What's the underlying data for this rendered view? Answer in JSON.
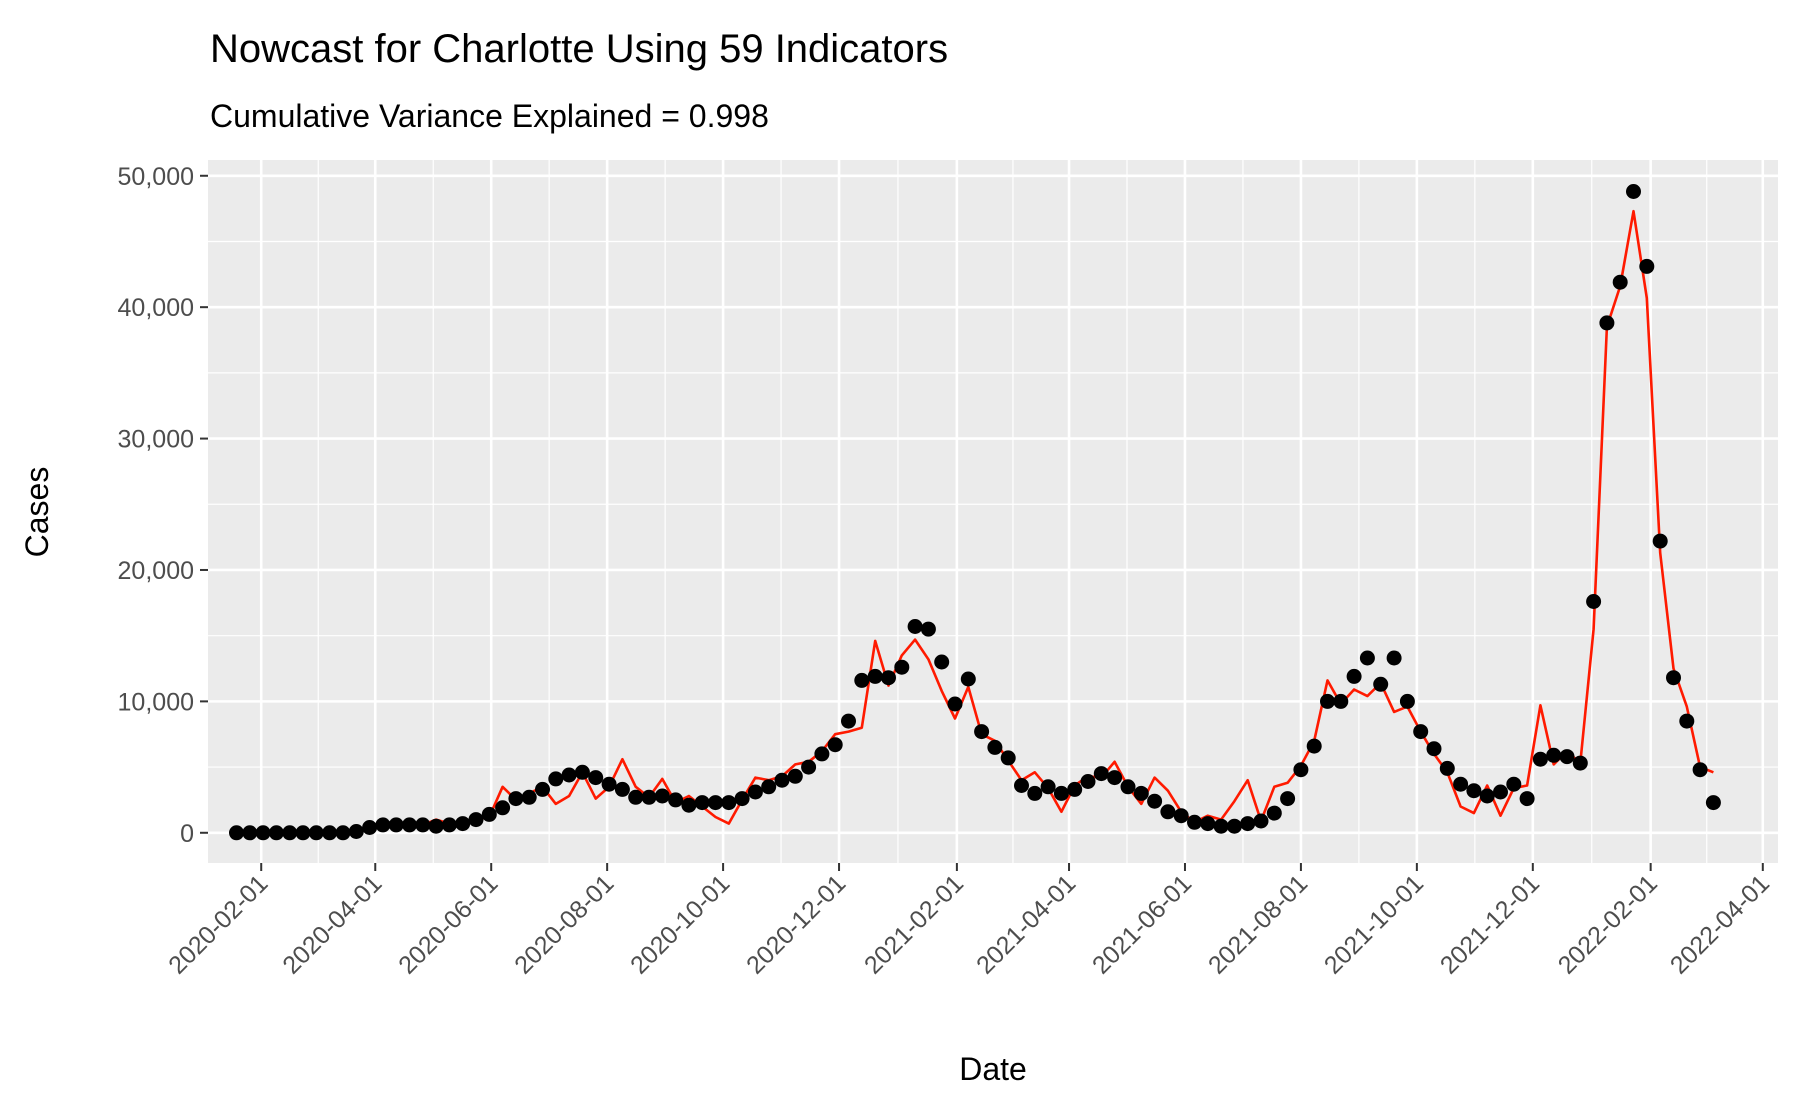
{
  "chart_data": {
    "type": "line",
    "title": "Nowcast for Charlotte Using 59 Indicators",
    "subtitle": "Cumulative Variance Explained = 0.998",
    "xlabel": "Date",
    "ylabel": "Cases",
    "x_start": "2020-01-19",
    "x_step_days": 7,
    "xlim": [
      "2020-01-04",
      "2022-04-09"
    ],
    "ylim": [
      -2300,
      51200
    ],
    "x_ticks": [
      "2020-02-01",
      "2020-04-01",
      "2020-06-01",
      "2020-08-01",
      "2020-10-01",
      "2020-12-01",
      "2021-02-01",
      "2021-04-01",
      "2021-06-01",
      "2021-08-01",
      "2021-10-01",
      "2021-12-01",
      "2022-02-01",
      "2022-04-01"
    ],
    "y_ticks": [
      0,
      10000,
      20000,
      30000,
      40000,
      50000
    ],
    "y_tick_labels": [
      "0",
      "10,000",
      "20,000",
      "30,000",
      "40,000",
      "50,000"
    ],
    "grid": true,
    "panel_background": "#ebebeb",
    "series": [
      {
        "name": "observed",
        "mark": "point",
        "color": "#000000",
        "values": [
          0,
          0,
          0,
          0,
          0,
          0,
          0,
          0,
          0,
          100,
          400,
          600,
          600,
          600,
          600,
          500,
          600,
          700,
          1000,
          1400,
          1900,
          2600,
          2700,
          3300,
          4100,
          4400,
          4600,
          4200,
          3700,
          3300,
          2700,
          2700,
          2800,
          2500,
          2100,
          2300,
          2300,
          2300,
          2600,
          3100,
          3500,
          4000,
          4300,
          5000,
          6000,
          6700,
          8500,
          11600,
          11900,
          11800,
          12600,
          15700,
          15500,
          13000,
          9800,
          11700,
          7700,
          6500,
          5700,
          3600,
          3000,
          3500,
          3000,
          3300,
          3900,
          4500,
          4200,
          3500,
          3000,
          2400,
          1600,
          1300,
          800,
          700,
          500,
          500,
          700,
          900,
          1500,
          2600,
          4800,
          6600,
          10000,
          10000,
          11900,
          13300,
          11300,
          13300,
          10000,
          7700,
          6400,
          4900,
          3700,
          3200,
          2800,
          3100,
          3700,
          2600,
          5600,
          5900,
          5800,
          5300,
          17600,
          38800,
          41900,
          48800,
          43100,
          22200,
          11800,
          8500,
          4800,
          2300
        ]
      },
      {
        "name": "nowcast",
        "mark": "line",
        "color": "#ff1a00",
        "values": [
          0,
          0,
          0,
          0,
          0,
          0,
          0,
          100,
          100,
          200,
          300,
          500,
          700,
          800,
          600,
          1000,
          700,
          900,
          1000,
          1200,
          3500,
          2500,
          3000,
          3500,
          2200,
          2800,
          4600,
          2600,
          3500,
          5600,
          3500,
          2700,
          4100,
          2300,
          2800,
          2000,
          1200,
          700,
          2500,
          4200,
          4000,
          4300,
          5200,
          5400,
          6200,
          7500,
          7700,
          8000,
          14600,
          11200,
          13500,
          14700,
          13200,
          10800,
          8700,
          11100,
          7500,
          7000,
          5500,
          4000,
          4600,
          3400,
          1600,
          3600,
          4300,
          4200,
          5400,
          3500,
          2200,
          4200,
          3200,
          1600,
          800,
          1300,
          1000,
          2400,
          4000,
          900,
          3500,
          3800,
          5100,
          7000,
          11600,
          9800,
          10900,
          10400,
          11400,
          9200,
          9600,
          7700,
          6000,
          4600,
          2000,
          1500,
          3600,
          1300,
          3400,
          3600,
          9700,
          5200,
          6200,
          5300,
          15500,
          38500,
          41600,
          47300,
          40700,
          21300,
          12500,
          9600,
          5000,
          4600
        ]
      }
    ]
  }
}
